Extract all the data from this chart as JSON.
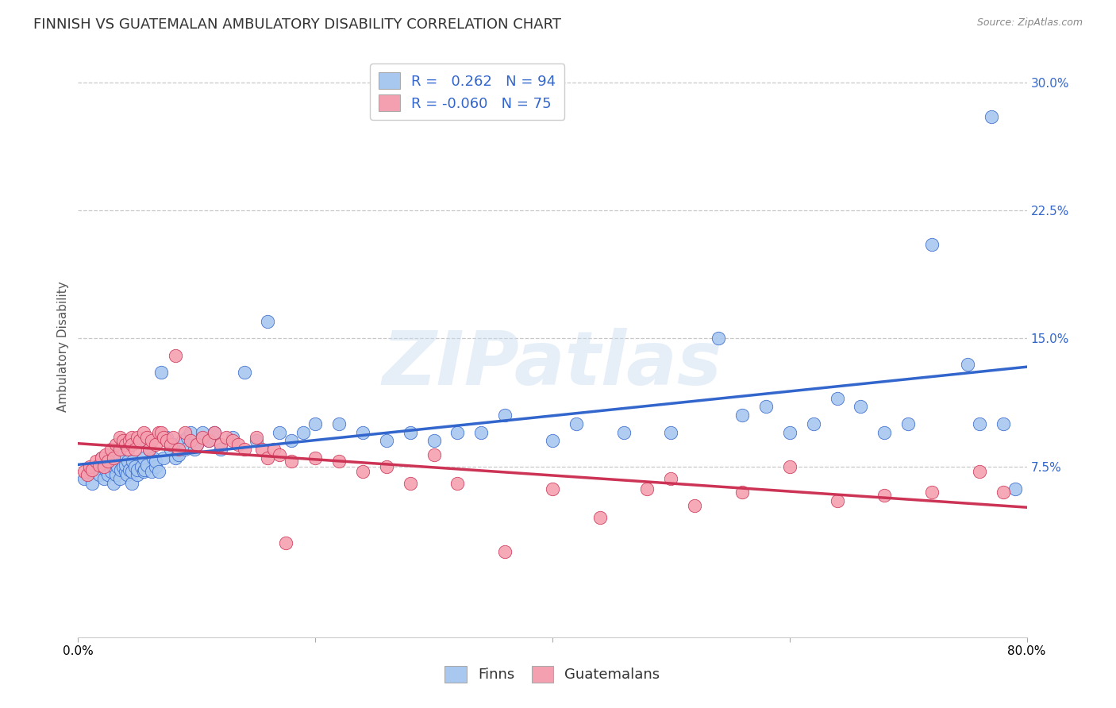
{
  "title": "FINNISH VS GUATEMALAN AMBULATORY DISABILITY CORRELATION CHART",
  "source": "Source: ZipAtlas.com",
  "ylabel": "Ambulatory Disability",
  "watermark": "ZIPatlas",
  "xlim": [
    0.0,
    0.8
  ],
  "ylim": [
    -0.025,
    0.315
  ],
  "yticks_right": [
    0.075,
    0.15,
    0.225,
    0.3
  ],
  "ytick_labels_right": [
    "7.5%",
    "15.0%",
    "22.5%",
    "30.0%"
  ],
  "legend_r_finns": " 0.262",
  "legend_n_finns": "94",
  "legend_r_guatemalans": "-0.060",
  "legend_n_guatemalans": "75",
  "color_finns": "#a8c8f0",
  "color_guatemalans": "#f5a0b0",
  "color_finns_line": "#3366cc",
  "color_guatemalans_line": "#cc3355",
  "background_color": "#ffffff",
  "grid_color": "#c8c8c8",
  "title_fontsize": 13,
  "axis_fontsize": 11,
  "tick_fontsize": 11,
  "legend_fontsize": 13,
  "finns_x": [
    0.005,
    0.01,
    0.012,
    0.015,
    0.018,
    0.02,
    0.022,
    0.023,
    0.025,
    0.025,
    0.028,
    0.03,
    0.03,
    0.032,
    0.033,
    0.035,
    0.035,
    0.036,
    0.038,
    0.04,
    0.04,
    0.041,
    0.042,
    0.043,
    0.045,
    0.045,
    0.046,
    0.048,
    0.05,
    0.05,
    0.052,
    0.053,
    0.055,
    0.055,
    0.056,
    0.058,
    0.06,
    0.062,
    0.063,
    0.065,
    0.065,
    0.068,
    0.07,
    0.072,
    0.075,
    0.078,
    0.08,
    0.082,
    0.085,
    0.088,
    0.09,
    0.092,
    0.095,
    0.098,
    0.1,
    0.105,
    0.11,
    0.115,
    0.12,
    0.13,
    0.14,
    0.15,
    0.16,
    0.17,
    0.18,
    0.19,
    0.2,
    0.22,
    0.24,
    0.26,
    0.28,
    0.3,
    0.32,
    0.34,
    0.36,
    0.4,
    0.42,
    0.46,
    0.5,
    0.54,
    0.56,
    0.58,
    0.6,
    0.62,
    0.64,
    0.66,
    0.68,
    0.7,
    0.72,
    0.75,
    0.76,
    0.77,
    0.78,
    0.79
  ],
  "finns_y": [
    0.068,
    0.072,
    0.065,
    0.075,
    0.07,
    0.08,
    0.068,
    0.073,
    0.07,
    0.076,
    0.072,
    0.065,
    0.075,
    0.07,
    0.075,
    0.068,
    0.08,
    0.073,
    0.075,
    0.072,
    0.076,
    0.07,
    0.078,
    0.073,
    0.065,
    0.072,
    0.078,
    0.075,
    0.07,
    0.073,
    0.09,
    0.075,
    0.072,
    0.08,
    0.073,
    0.076,
    0.085,
    0.072,
    0.08,
    0.075,
    0.078,
    0.072,
    0.13,
    0.08,
    0.092,
    0.085,
    0.088,
    0.08,
    0.082,
    0.09,
    0.085,
    0.092,
    0.095,
    0.085,
    0.088,
    0.095,
    0.09,
    0.095,
    0.085,
    0.092,
    0.13,
    0.09,
    0.16,
    0.095,
    0.09,
    0.095,
    0.1,
    0.1,
    0.095,
    0.09,
    0.095,
    0.09,
    0.095,
    0.095,
    0.105,
    0.09,
    0.1,
    0.095,
    0.095,
    0.15,
    0.105,
    0.11,
    0.095,
    0.1,
    0.115,
    0.11,
    0.095,
    0.1,
    0.205,
    0.135,
    0.1,
    0.28,
    0.1,
    0.062
  ],
  "guatemalans_x": [
    0.005,
    0.008,
    0.01,
    0.012,
    0.015,
    0.018,
    0.02,
    0.022,
    0.023,
    0.025,
    0.028,
    0.03,
    0.032,
    0.035,
    0.035,
    0.038,
    0.04,
    0.042,
    0.043,
    0.045,
    0.045,
    0.048,
    0.05,
    0.052,
    0.055,
    0.058,
    0.06,
    0.062,
    0.065,
    0.068,
    0.07,
    0.072,
    0.075,
    0.078,
    0.08,
    0.082,
    0.085,
    0.09,
    0.095,
    0.1,
    0.105,
    0.11,
    0.115,
    0.12,
    0.125,
    0.13,
    0.135,
    0.14,
    0.15,
    0.155,
    0.16,
    0.165,
    0.17,
    0.175,
    0.18,
    0.2,
    0.22,
    0.24,
    0.26,
    0.28,
    0.3,
    0.32,
    0.36,
    0.4,
    0.44,
    0.48,
    0.5,
    0.52,
    0.56,
    0.6,
    0.64,
    0.68,
    0.72,
    0.76,
    0.78
  ],
  "guatemalans_y": [
    0.072,
    0.07,
    0.075,
    0.073,
    0.078,
    0.076,
    0.08,
    0.075,
    0.082,
    0.078,
    0.085,
    0.08,
    0.088,
    0.085,
    0.092,
    0.09,
    0.088,
    0.085,
    0.09,
    0.092,
    0.088,
    0.085,
    0.092,
    0.09,
    0.095,
    0.092,
    0.085,
    0.09,
    0.088,
    0.095,
    0.095,
    0.092,
    0.09,
    0.088,
    0.092,
    0.14,
    0.085,
    0.095,
    0.09,
    0.088,
    0.092,
    0.09,
    0.095,
    0.088,
    0.092,
    0.09,
    0.088,
    0.085,
    0.092,
    0.085,
    0.08,
    0.085,
    0.082,
    0.03,
    0.078,
    0.08,
    0.078,
    0.072,
    0.075,
    0.065,
    0.082,
    0.065,
    0.025,
    0.062,
    0.045,
    0.062,
    0.068,
    0.052,
    0.06,
    0.075,
    0.055,
    0.058,
    0.06,
    0.072,
    0.06
  ]
}
